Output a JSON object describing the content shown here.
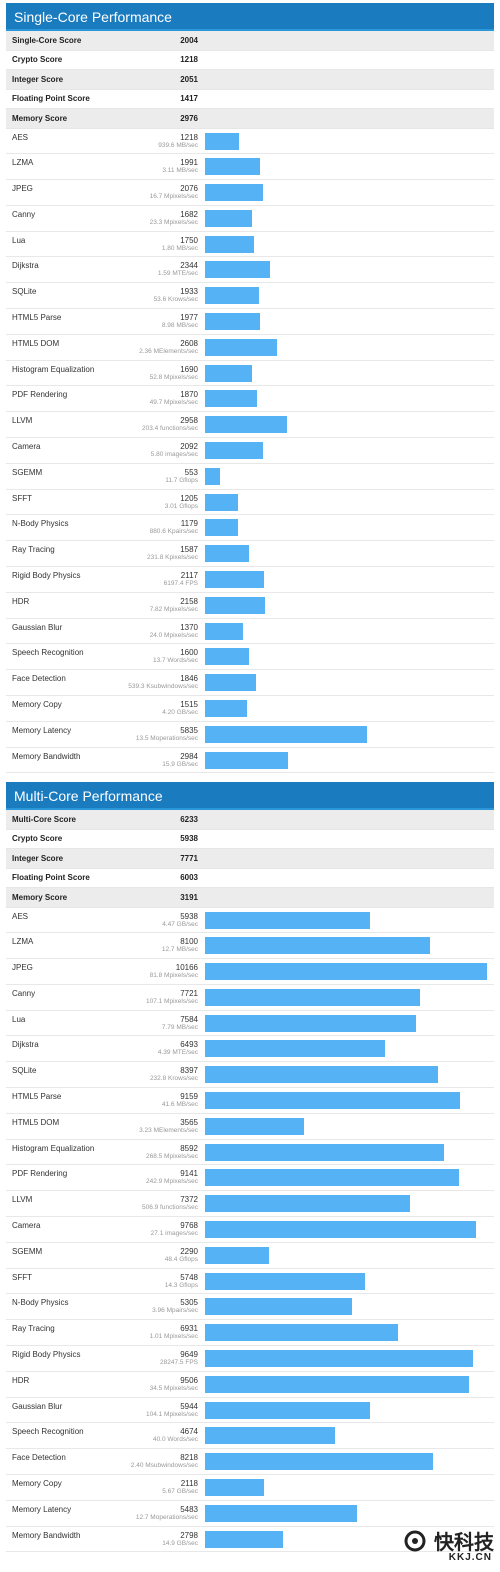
{
  "sections": [
    {
      "title": "Single-Core Performance",
      "summary": [
        {
          "label": "Single-Core Score",
          "value": "2004"
        },
        {
          "label": "Crypto Score",
          "value": "1218"
        },
        {
          "label": "Integer Score",
          "value": "2051"
        },
        {
          "label": "Floating Point Score",
          "value": "1417"
        },
        {
          "label": "Memory Score",
          "value": "2976"
        }
      ],
      "benchmarks": [
        {
          "name": "AES",
          "score": 1218,
          "rate": "939.6 MB/sec"
        },
        {
          "name": "LZMA",
          "score": 1991,
          "rate": "3.11 MB/sec"
        },
        {
          "name": "JPEG",
          "score": 2076,
          "rate": "16.7 Mpixels/sec"
        },
        {
          "name": "Canny",
          "score": 1682,
          "rate": "23.3 Mpixels/sec"
        },
        {
          "name": "Lua",
          "score": 1750,
          "rate": "1.80 MB/sec"
        },
        {
          "name": "Dijkstra",
          "score": 2344,
          "rate": "1.59 MTE/sec"
        },
        {
          "name": "SQLite",
          "score": 1933,
          "rate": "53.6 Krows/sec"
        },
        {
          "name": "HTML5 Parse",
          "score": 1977,
          "rate": "8.98 MB/sec"
        },
        {
          "name": "HTML5 DOM",
          "score": 2608,
          "rate": "2.36 MElements/sec"
        },
        {
          "name": "Histogram Equalization",
          "score": 1690,
          "rate": "52.8 Mpixels/sec"
        },
        {
          "name": "PDF Rendering",
          "score": 1870,
          "rate": "49.7 Mpixels/sec"
        },
        {
          "name": "LLVM",
          "score": 2958,
          "rate": "203.4 functions/sec"
        },
        {
          "name": "Camera",
          "score": 2092,
          "rate": "5.80 images/sec"
        },
        {
          "name": "SGEMM",
          "score": 553,
          "rate": "11.7 Gflops"
        },
        {
          "name": "SFFT",
          "score": 1205,
          "rate": "3.01 Gflops"
        },
        {
          "name": "N-Body Physics",
          "score": 1179,
          "rate": "880.6 Kpairs/sec"
        },
        {
          "name": "Ray Tracing",
          "score": 1587,
          "rate": "231.8 Kpixels/sec"
        },
        {
          "name": "Rigid Body Physics",
          "score": 2117,
          "rate": "6197.4 FPS"
        },
        {
          "name": "HDR",
          "score": 2158,
          "rate": "7.82 Mpixels/sec"
        },
        {
          "name": "Gaussian Blur",
          "score": 1370,
          "rate": "24.0 Mpixels/sec"
        },
        {
          "name": "Speech Recognition",
          "score": 1600,
          "rate": "13.7 Words/sec"
        },
        {
          "name": "Face Detection",
          "score": 1846,
          "rate": "539.3 Ksubwindows/sec"
        },
        {
          "name": "Memory Copy",
          "score": 1515,
          "rate": "4.20 GB/sec"
        },
        {
          "name": "Memory Latency",
          "score": 5835,
          "rate": "13.5 Moperations/sec"
        },
        {
          "name": "Memory Bandwidth",
          "score": 2984,
          "rate": "15.9 GB/sec"
        }
      ]
    },
    {
      "title": "Multi-Core Performance",
      "summary": [
        {
          "label": "Multi-Core Score",
          "value": "6233"
        },
        {
          "label": "Crypto Score",
          "value": "5938"
        },
        {
          "label": "Integer Score",
          "value": "7771"
        },
        {
          "label": "Floating Point Score",
          "value": "6003"
        },
        {
          "label": "Memory Score",
          "value": "3191"
        }
      ],
      "benchmarks": [
        {
          "name": "AES",
          "score": 5938,
          "rate": "4.47 GB/sec"
        },
        {
          "name": "LZMA",
          "score": 8100,
          "rate": "12.7 MB/sec"
        },
        {
          "name": "JPEG",
          "score": 10166,
          "rate": "81.8 Mpixels/sec"
        },
        {
          "name": "Canny",
          "score": 7721,
          "rate": "107.1 Mpixels/sec"
        },
        {
          "name": "Lua",
          "score": 7584,
          "rate": "7.79 MB/sec"
        },
        {
          "name": "Dijkstra",
          "score": 6493,
          "rate": "4.39 MTE/sec"
        },
        {
          "name": "SQLite",
          "score": 8397,
          "rate": "232.8 Krows/sec"
        },
        {
          "name": "HTML5 Parse",
          "score": 9159,
          "rate": "41.6 MB/sec"
        },
        {
          "name": "HTML5 DOM",
          "score": 3565,
          "rate": "3.23 MElements/sec"
        },
        {
          "name": "Histogram Equalization",
          "score": 8592,
          "rate": "268.5 Mpixels/sec"
        },
        {
          "name": "PDF Rendering",
          "score": 9141,
          "rate": "242.9 Mpixels/sec"
        },
        {
          "name": "LLVM",
          "score": 7372,
          "rate": "506.9 functions/sec"
        },
        {
          "name": "Camera",
          "score": 9768,
          "rate": "27.1 images/sec"
        },
        {
          "name": "SGEMM",
          "score": 2290,
          "rate": "48.4 Gflops"
        },
        {
          "name": "SFFT",
          "score": 5748,
          "rate": "14.3 Gflops"
        },
        {
          "name": "N-Body Physics",
          "score": 5305,
          "rate": "3.96 Mpairs/sec"
        },
        {
          "name": "Ray Tracing",
          "score": 6931,
          "rate": "1.01 Mpixels/sec"
        },
        {
          "name": "Rigid Body Physics",
          "score": 9649,
          "rate": "28247.5 FPS"
        },
        {
          "name": "HDR",
          "score": 9506,
          "rate": "34.5 Mpixels/sec"
        },
        {
          "name": "Gaussian Blur",
          "score": 5944,
          "rate": "104.1 Mpixels/sec"
        },
        {
          "name": "Speech Recognition",
          "score": 4674,
          "rate": "40.0 Words/sec"
        },
        {
          "name": "Face Detection",
          "score": 8218,
          "rate": "2.40 Msubwindows/sec"
        },
        {
          "name": "Memory Copy",
          "score": 2118,
          "rate": "5.67 GB/sec"
        },
        {
          "name": "Memory Latency",
          "score": 5483,
          "rate": "12.7 Moperations/sec"
        },
        {
          "name": "Memory Bandwidth",
          "score": 2798,
          "rate": "14.9 GB/sec"
        }
      ]
    }
  ],
  "colors": {
    "header": "#1a7bbf",
    "bar": "#55b3f5",
    "summary_alt": "#ececec"
  },
  "watermark": {
    "cn": "快科技",
    "en": "KKJ.CN"
  },
  "chart_data": [
    {
      "type": "bar",
      "title": "Single-Core Performance",
      "categories": [
        "AES",
        "LZMA",
        "JPEG",
        "Canny",
        "Lua",
        "Dijkstra",
        "SQLite",
        "HTML5 Parse",
        "HTML5 DOM",
        "Histogram Equalization",
        "PDF Rendering",
        "LLVM",
        "Camera",
        "SGEMM",
        "SFFT",
        "N-Body Physics",
        "Ray Tracing",
        "Rigid Body Physics",
        "HDR",
        "Gaussian Blur",
        "Speech Recognition",
        "Face Detection",
        "Memory Copy",
        "Memory Latency",
        "Memory Bandwidth"
      ],
      "values": [
        1218,
        1991,
        2076,
        1682,
        1750,
        2344,
        1933,
        1977,
        2608,
        1690,
        1870,
        2958,
        2092,
        553,
        1205,
        1179,
        1587,
        2117,
        2158,
        1370,
        1600,
        1846,
        1515,
        5835,
        2984
      ],
      "orientation": "horizontal",
      "xlim": [
        0,
        10400
      ]
    },
    {
      "type": "bar",
      "title": "Multi-Core Performance",
      "categories": [
        "AES",
        "LZMA",
        "JPEG",
        "Canny",
        "Lua",
        "Dijkstra",
        "SQLite",
        "HTML5 Parse",
        "HTML5 DOM",
        "Histogram Equalization",
        "PDF Rendering",
        "LLVM",
        "Camera",
        "SGEMM",
        "SFFT",
        "N-Body Physics",
        "Ray Tracing",
        "Rigid Body Physics",
        "HDR",
        "Gaussian Blur",
        "Speech Recognition",
        "Face Detection",
        "Memory Copy",
        "Memory Latency",
        "Memory Bandwidth"
      ],
      "values": [
        5938,
        8100,
        10166,
        7721,
        7584,
        6493,
        8397,
        9159,
        3565,
        8592,
        9141,
        7372,
        9768,
        2290,
        5748,
        5305,
        6931,
        9649,
        9506,
        5944,
        4674,
        8218,
        2118,
        5483,
        2798
      ],
      "orientation": "horizontal",
      "xlim": [
        0,
        10400
      ]
    }
  ]
}
